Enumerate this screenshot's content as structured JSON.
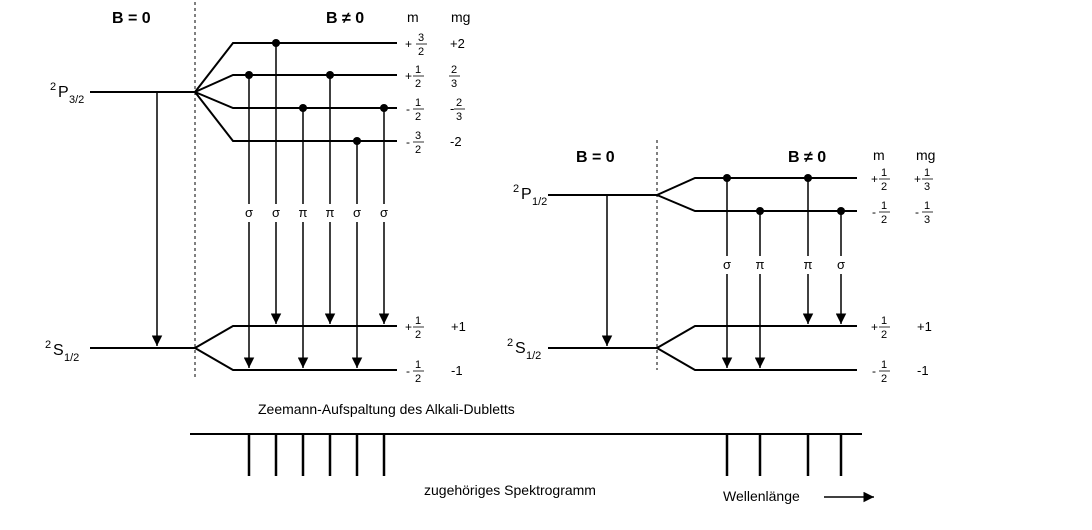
{
  "left": {
    "header_b0": "B = 0",
    "header_bne0": "B ≠ 0",
    "col_m": "m",
    "col_mg": "mg",
    "upper_term": {
      "sup": "2",
      "main": "P",
      "sub": "3/2"
    },
    "lower_term": {
      "sup": "2",
      "main": "S",
      "sub": "1/2"
    },
    "upper_levels": [
      {
        "sign": "+",
        "num": "3",
        "den": "2",
        "mg": "+2"
      },
      {
        "sign": "+",
        "num": "1",
        "den": "2",
        "mg_num": "2",
        "mg_den": "3"
      },
      {
        "sign": "-",
        "num": "1",
        "den": "2",
        "mg_sign": "-",
        "mg_num": "2",
        "mg_den": "3"
      },
      {
        "sign": "-",
        "num": "3",
        "den": "2",
        "mg": "-2"
      }
    ],
    "lower_levels": [
      {
        "sign": "+",
        "num": "1",
        "den": "2",
        "mg": "+1"
      },
      {
        "sign": "-",
        "num": "1",
        "den": "2",
        "mg": "-1"
      }
    ],
    "transition_labels": [
      "σ",
      "σ",
      "π",
      "π",
      "σ",
      "σ"
    ]
  },
  "right": {
    "header_b0": "B = 0",
    "header_bne0": "B ≠ 0",
    "col_m": "m",
    "col_mg": "mg",
    "upper_term": {
      "sup": "2",
      "main": "P",
      "sub": "1/2"
    },
    "lower_term": {
      "sup": "2",
      "main": "S",
      "sub": "1/2"
    },
    "upper_levels": [
      {
        "sign": "+",
        "num": "1",
        "den": "2",
        "mg_sign": "+",
        "mg_num": "1",
        "mg_den": "3"
      },
      {
        "sign": "-",
        "num": "1",
        "den": "2",
        "mg_sign": "-",
        "mg_num": "1",
        "mg_den": "3"
      }
    ],
    "lower_levels": [
      {
        "sign": "+",
        "num": "1",
        "den": "2",
        "mg": "+1"
      },
      {
        "sign": "-",
        "num": "1",
        "den": "2",
        "mg": "-1"
      }
    ],
    "transition_labels": [
      "σ",
      "π",
      "π",
      "σ"
    ]
  },
  "caption": "Zeemann-Aufspaltung des Alkali-Dubletts",
  "spectrogram_label": "zugehöriges Spektrogramm",
  "wavelength_label": "Wellenlänge"
}
